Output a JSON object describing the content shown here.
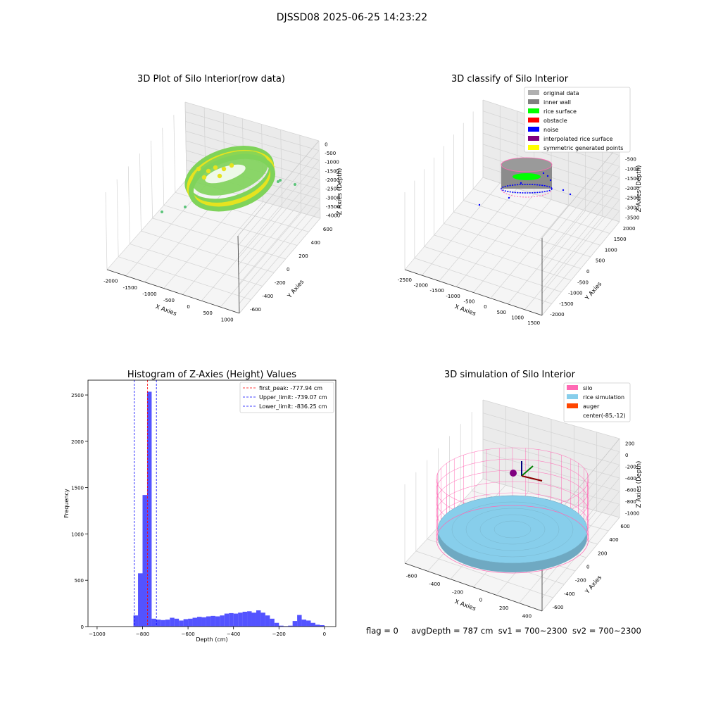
{
  "figure_title": "DJSSD08 2025-06-25 14:23:22",
  "footer": {
    "flag": "flag = 0",
    "avg_depth": "avgDepth = 787 cm",
    "sv1": "sv1 = 700~2300",
    "sv2": "sv2 = 700~2300"
  },
  "colors": {
    "scan_green": "#7fd35a",
    "scan_yellow": "#e6e31f",
    "hist_bar": "#4040ff",
    "silo": "#ff69b4",
    "rice": "#87ceeb",
    "auger": "#ff4500"
  },
  "chart_data": [
    {
      "type": "scatter",
      "title": "3D Plot of Silo Interior(row data)",
      "xlabel": "X Axies",
      "ylabel": "Y Axies",
      "zlabel": "Z Axies (Depth)",
      "x_ticks": [
        "-2000",
        "-1500",
        "-1000",
        "-500",
        "0",
        "500",
        "1000"
      ],
      "y_ticks": [
        "-600",
        "-400",
        "-200",
        "0",
        "200",
        "400",
        "600"
      ],
      "z_ticks": [
        "0",
        "-500",
        "-1000",
        "-1500",
        "-2000",
        "-2500",
        "-3000",
        "-3500",
        "-4000"
      ],
      "grid": true
    },
    {
      "type": "scatter",
      "title": "3D classify of Silo Interior",
      "xlabel": "X Axies",
      "ylabel": "Y Axies",
      "zlabel": "Z Axies (Depth)",
      "x_ticks": [
        "-2500",
        "-2000",
        "-1500",
        "-1000",
        "-500",
        "0",
        "500",
        "1000",
        "1500"
      ],
      "y_ticks": [
        "-2000",
        "-1500",
        "-1000",
        "-500",
        "0",
        "500",
        "1000",
        "1500",
        "2000"
      ],
      "z_ticks": [
        "0",
        "-500",
        "-1000",
        "-1500",
        "-2000",
        "-2500",
        "-3000",
        "-3500"
      ],
      "legend": [
        {
          "name": "original data",
          "color": "#b0b0b0"
        },
        {
          "name": "inner wall",
          "color": "#808080"
        },
        {
          "name": "rice surface",
          "color": "#00ff00"
        },
        {
          "name": "obstacle",
          "color": "#ff0000"
        },
        {
          "name": "noise",
          "color": "#0000ff"
        },
        {
          "name": "interpolated rice surface",
          "color": "#800080"
        },
        {
          "name": "symmetric generated points",
          "color": "#ffff00"
        }
      ],
      "legend_position": "top-right",
      "grid": true
    },
    {
      "type": "bar",
      "title": "Histogram of Z-Axies (Height) Values",
      "xlabel": "Depth (cm)",
      "ylabel": "Frequency",
      "xlim": [
        -1040,
        50
      ],
      "ylim": [
        0,
        2660
      ],
      "x_ticks": [
        -1000,
        -800,
        -600,
        -400,
        -200,
        0
      ],
      "y_ticks": [
        0,
        500,
        1000,
        1500,
        2000,
        2500
      ],
      "bin_width": 20,
      "bins": [
        [
          -840,
          120
        ],
        [
          -820,
          575
        ],
        [
          -800,
          1420
        ],
        [
          -780,
          2535
        ],
        [
          -760,
          85
        ],
        [
          -740,
          75
        ],
        [
          -720,
          70
        ],
        [
          -700,
          75
        ],
        [
          -680,
          95
        ],
        [
          -660,
          85
        ],
        [
          -640,
          65
        ],
        [
          -620,
          80
        ],
        [
          -600,
          85
        ],
        [
          -580,
          95
        ],
        [
          -560,
          105
        ],
        [
          -540,
          100
        ],
        [
          -520,
          110
        ],
        [
          -500,
          115
        ],
        [
          -480,
          110
        ],
        [
          -460,
          120
        ],
        [
          -440,
          140
        ],
        [
          -420,
          145
        ],
        [
          -400,
          140
        ],
        [
          -380,
          150
        ],
        [
          -360,
          160
        ],
        [
          -340,
          165
        ],
        [
          -320,
          150
        ],
        [
          -300,
          175
        ],
        [
          -280,
          150
        ],
        [
          -260,
          120
        ],
        [
          -240,
          85
        ],
        [
          -220,
          40
        ],
        [
          -200,
          10
        ],
        [
          -180,
          5
        ],
        [
          -160,
          10
        ],
        [
          -140,
          60
        ],
        [
          -120,
          125
        ],
        [
          -100,
          75
        ],
        [
          -80,
          65
        ],
        [
          -60,
          40
        ],
        [
          -40,
          20
        ],
        [
          -20,
          15
        ]
      ],
      "lines": [
        {
          "name": "first_peak: -777.94 cm",
          "x": -777.94,
          "color": "#ff0000"
        },
        {
          "name": "Upper_limit: -739.07 cm",
          "x": -739.07,
          "color": "#0000ff"
        },
        {
          "name": "Lower_limit: -836.25 cm",
          "x": -836.25,
          "color": "#0000ff"
        }
      ],
      "legend_position": "top-right",
      "grid": false
    },
    {
      "type": "scatter",
      "title": "3D simulation of Silo Interior",
      "xlabel": "X Axies",
      "ylabel": "Y Axies",
      "zlabel": "Z Axies (Depth)",
      "x_ticks": [
        "-600",
        "-400",
        "-200",
        "0",
        "200",
        "400"
      ],
      "y_ticks": [
        "-600",
        "-400",
        "-200",
        "0",
        "200",
        "400",
        "600"
      ],
      "z_ticks": [
        "200",
        "0",
        "-200",
        "-400",
        "-600",
        "-800",
        "-1000"
      ],
      "legend": [
        {
          "name": "silo",
          "color": "#ff69b4"
        },
        {
          "name": "rice simulation",
          "color": "#87ceeb"
        },
        {
          "name": "auger",
          "color": "#ff4500"
        },
        {
          "name": "center(-85,-12)",
          "color": ""
        }
      ],
      "legend_position": "top-right",
      "grid": true
    }
  ]
}
